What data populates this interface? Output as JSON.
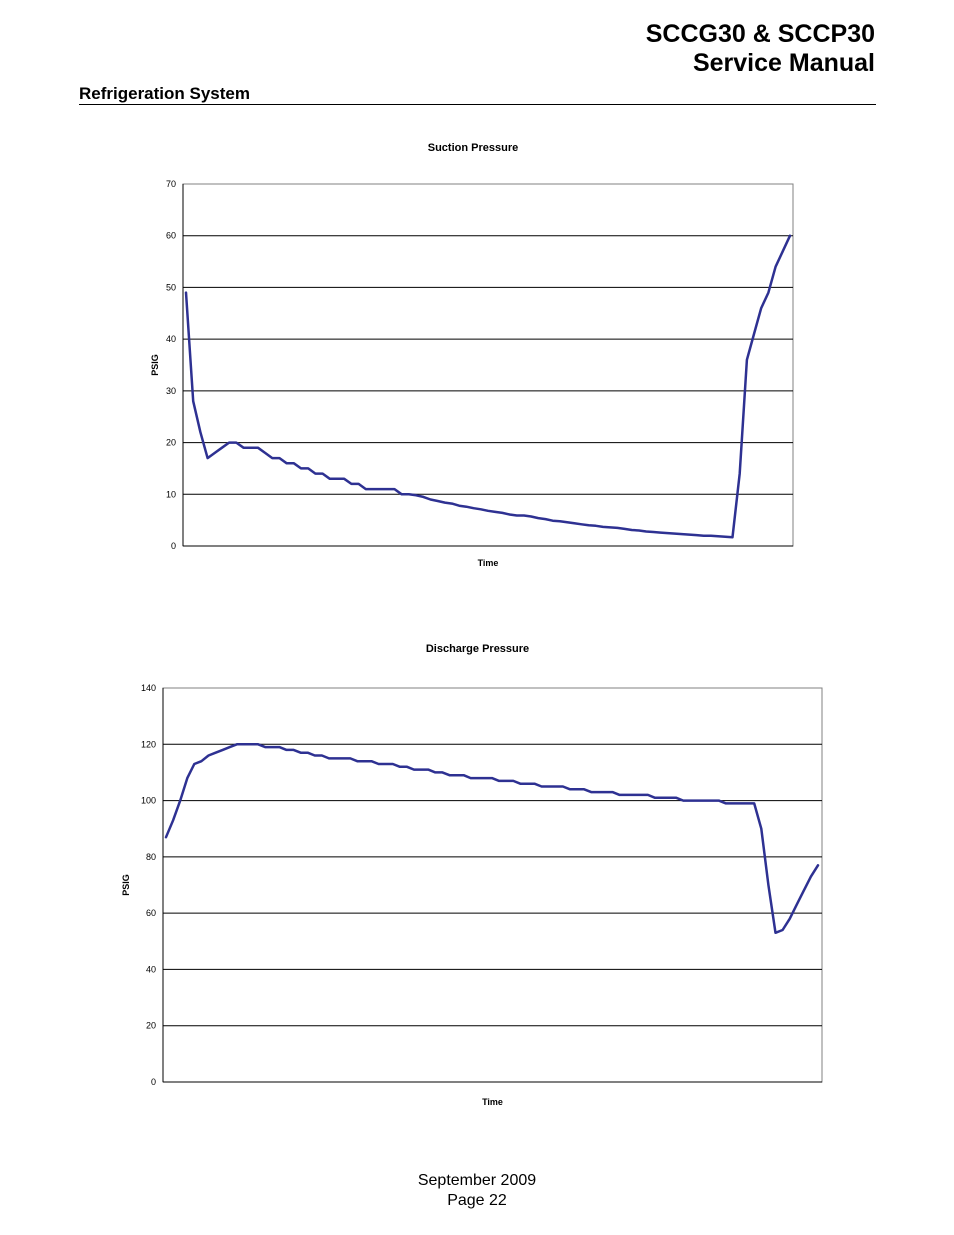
{
  "header": {
    "title_line1": "SCCG30 & SCCP30",
    "title_line2": "Service Manual",
    "section": "Refrigeration System"
  },
  "footer": {
    "date": "September 2009",
    "page": "Page 22"
  },
  "colors": {
    "series_line": "#2e3192",
    "gridline": "#000000",
    "plot_border": "#808080"
  },
  "chart_data": [
    {
      "type": "line",
      "title": "Suction Pressure",
      "xlabel": "Time",
      "ylabel": "PSIG",
      "ylim": [
        0,
        70
      ],
      "yticks": [
        "0",
        "10",
        "20",
        "30",
        "40",
        "50",
        "60",
        "70"
      ],
      "grid": "horizontal",
      "legend": "none",
      "series": [
        {
          "values": [
            49,
            28,
            22,
            17,
            18,
            19,
            20,
            20,
            19,
            19,
            19,
            18,
            17,
            17,
            16,
            16,
            15,
            15,
            14,
            14,
            13,
            13,
            13,
            12,
            12,
            11,
            11,
            11,
            11,
            11,
            10,
            10,
            9.8,
            9.5,
            9.0,
            8.7,
            8.4,
            8.2,
            7.8,
            7.6,
            7.3,
            7.1,
            6.8,
            6.6,
            6.4,
            6.1,
            5.9,
            5.9,
            5.7,
            5.4,
            5.2,
            4.9,
            4.8,
            4.6,
            4.4,
            4.2,
            4.0,
            3.9,
            3.7,
            3.6,
            3.5,
            3.3,
            3.1,
            3.0,
            2.8,
            2.7,
            2.6,
            2.5,
            2.4,
            2.3,
            2.2,
            2.1,
            2.0,
            2.0,
            1.9,
            1.8,
            1.7,
            14,
            36,
            41,
            46,
            49,
            54,
            57,
            60
          ]
        }
      ]
    },
    {
      "type": "line",
      "title": "Discharge Pressure",
      "xlabel": "Time",
      "ylabel": "PSIG",
      "ylim": [
        0,
        140
      ],
      "yticks": [
        "0",
        "20",
        "40",
        "60",
        "80",
        "100",
        "120",
        "140"
      ],
      "grid": "horizontal",
      "legend": "none",
      "series": [
        {
          "values": [
            87,
            93,
            100,
            108,
            113,
            114,
            116,
            117,
            118,
            119,
            120,
            120,
            120,
            120,
            119,
            119,
            119,
            118,
            118,
            117,
            117,
            116,
            116,
            115,
            115,
            115,
            115,
            114,
            114,
            114,
            113,
            113,
            113,
            112,
            112,
            111,
            111,
            111,
            110,
            110,
            109,
            109,
            109,
            108,
            108,
            108,
            108,
            107,
            107,
            107,
            106,
            106,
            106,
            105,
            105,
            105,
            105,
            104,
            104,
            104,
            103,
            103,
            103,
            103,
            102,
            102,
            102,
            102,
            102,
            101,
            101,
            101,
            101,
            100,
            100,
            100,
            100,
            100,
            100,
            99,
            99,
            99,
            99,
            99,
            90,
            70,
            53,
            54,
            58,
            63,
            68,
            73,
            77
          ]
        }
      ]
    }
  ]
}
